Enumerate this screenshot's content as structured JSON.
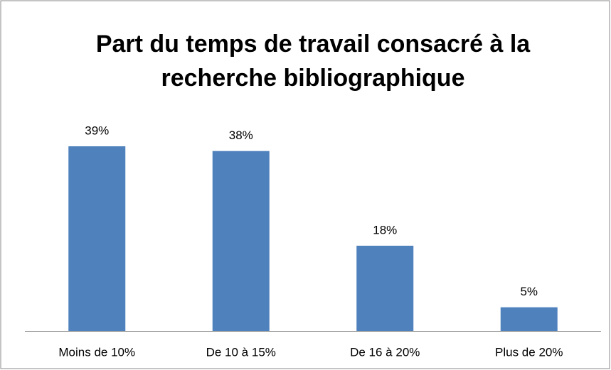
{
  "chart_data": {
    "type": "bar",
    "title": [
      "Part du temps de travail consacré à la",
      "recherche bibliographique"
    ],
    "categories": [
      "Moins de 10%",
      "De 10 à 15%",
      "De 16 à 20%",
      "Plus de 20%"
    ],
    "values": [
      39,
      38,
      18,
      5
    ],
    "value_labels": [
      "39%",
      "38%",
      "18%",
      "5%"
    ],
    "color": "#4f81bd"
  }
}
